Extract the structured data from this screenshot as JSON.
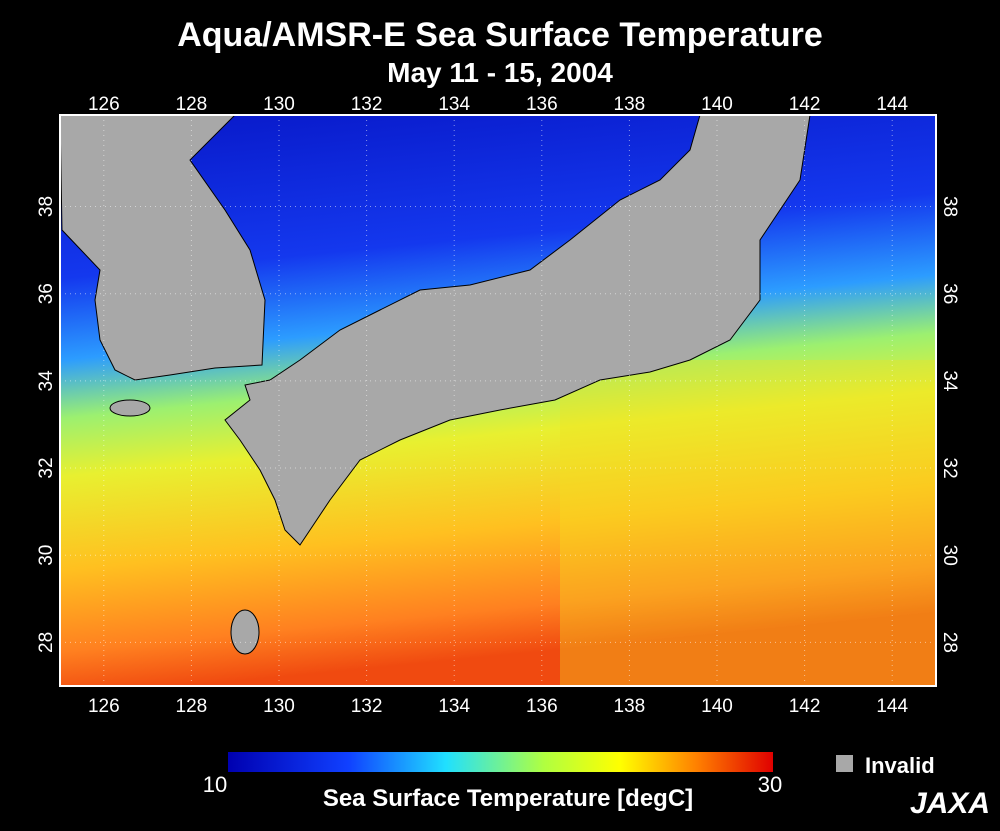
{
  "title": "Aqua/AMSR-E  Sea Surface Temperature",
  "subtitle": "May 11 - 15, 2004",
  "map": {
    "lon_range": [
      125,
      145
    ],
    "lat_range": [
      27,
      40.1
    ],
    "lon_ticks": [
      126,
      128,
      130,
      132,
      134,
      136,
      138,
      140,
      142,
      144
    ],
    "lat_ticks": [
      28,
      30,
      32,
      34,
      36,
      38
    ]
  },
  "colorbar": {
    "min": 10,
    "max": 30,
    "label": "Sea Surface Temperature [degC]"
  },
  "legend": {
    "invalid": "Invalid"
  },
  "logo": "JAXA"
}
